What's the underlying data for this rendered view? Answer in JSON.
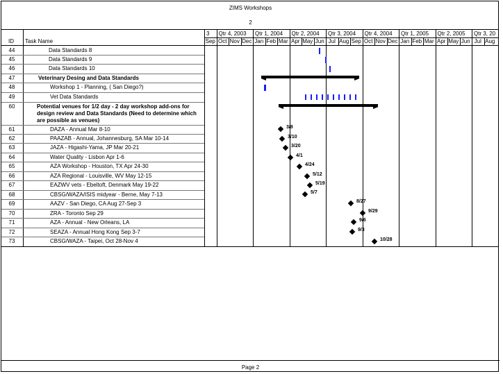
{
  "header": {
    "title": "ZIMS Workshops",
    "page_number": "2"
  },
  "footer": {
    "label": "Page 2"
  },
  "columns": {
    "id": "ID",
    "task_name": "Task Name"
  },
  "timescale": {
    "quarters": [
      "3",
      "Qtr 4, 2003",
      "Qtr 1, 2004",
      "Qtr 2, 2004",
      "Qtr 3, 2004",
      "Qtr 4, 2004",
      "Qtr 1, 2005",
      "Qtr 2, 2005",
      "Qtr 3, 20"
    ],
    "months": [
      "Sep",
      "Oct",
      "Nov",
      "Dec",
      "Jan",
      "Feb",
      "Mar",
      "Apr",
      "May",
      "Jun",
      "Jul",
      "Aug",
      "Sep",
      "Oct",
      "Nov",
      "Dec",
      "Jan",
      "Feb",
      "Mar",
      "Apr",
      "May",
      "Jun",
      "Jul",
      "Aug"
    ]
  },
  "tasks": [
    {
      "id": "44",
      "name": "Data Standards 8"
    },
    {
      "id": "45",
      "name": "Data Standards 9"
    },
    {
      "id": "46",
      "name": "Data Standards 10"
    },
    {
      "id": "47",
      "name": "Veterinary Desing and Data Standards"
    },
    {
      "id": "48",
      "name": "Workshop 1 - Planning, ( San Diego?)"
    },
    {
      "id": "49",
      "name": "Vet Data Standards"
    },
    {
      "id": "60",
      "name": "Potential venues for 1/2 day - 2 day workshop add-ons for design review and Data Standards (Need to determine which are possible as venues)"
    },
    {
      "id": "61",
      "name": "DAZA - Annual Mar 8-10"
    },
    {
      "id": "62",
      "name": "PAAZAB - Annual, Johannesburg, SA Mar 10-14"
    },
    {
      "id": "63",
      "name": "JAZA - Higashi-Yama, JP Mar 20-21"
    },
    {
      "id": "64",
      "name": "Water Quality - Lisbon Apr 1-6"
    },
    {
      "id": "65",
      "name": "AZA Workshop - Houston, TX Apr 24-30"
    },
    {
      "id": "66",
      "name": "AZA Regional - Louisville, WV May 12-15"
    },
    {
      "id": "67",
      "name": "EAZWV vets - Ebeltoft, Denmark May 19-22"
    },
    {
      "id": "68",
      "name": "CBSG/WAZA/ISIS midyear - Berne, May 7-13"
    },
    {
      "id": "69",
      "name": "AAZV - San Diego, CA Aug 27-Sep 3"
    },
    {
      "id": "70",
      "name": "ZRA - Toronto Sep 29"
    },
    {
      "id": "71",
      "name": "AZA - Annual - New Orleans, LA"
    },
    {
      "id": "72",
      "name": "SEAZA - Annual Hong Kong Sep 3-7"
    },
    {
      "id": "73",
      "name": "CBSG/WAZA - Taipei, Oct 28-Nov 4"
    }
  ],
  "milestones": [
    {
      "label": "3/8"
    },
    {
      "label": "3/10"
    },
    {
      "label": "3/20"
    },
    {
      "label": "4/1"
    },
    {
      "label": "4/24"
    },
    {
      "label": "5/12"
    },
    {
      "label": "5/19"
    },
    {
      "label": "5/7"
    },
    {
      "label": "8/27"
    },
    {
      "label": "9/29"
    },
    {
      "label": "9/6"
    },
    {
      "label": "9/3"
    },
    {
      "label": "10/28"
    }
  ],
  "colors": {
    "tick": "#1a1aff",
    "bar": "#000000",
    "border": "#000000"
  }
}
